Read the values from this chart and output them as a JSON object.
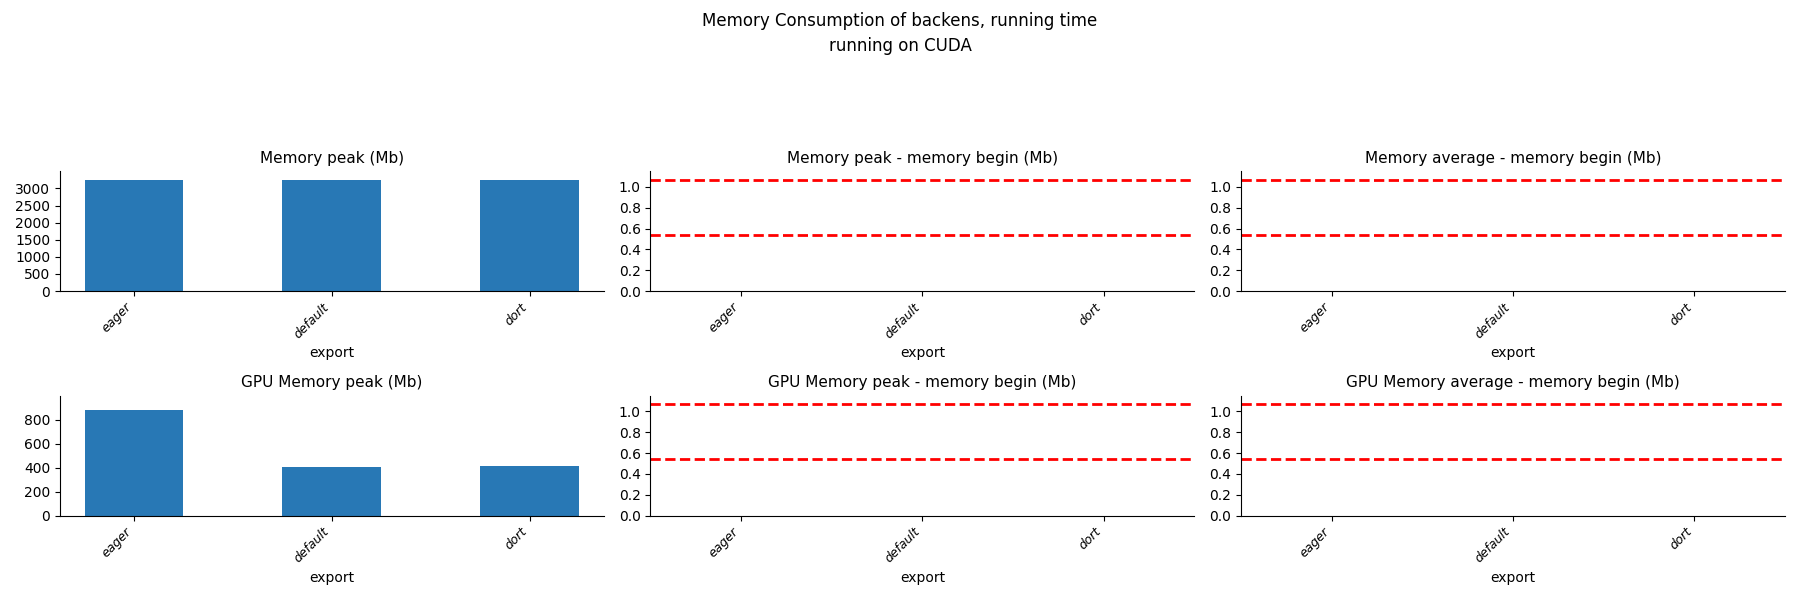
{
  "suptitle": "Memory Consumption of backens, running time\nrunning on CUDA",
  "categories": [
    "eager",
    "default",
    "dort"
  ],
  "xlabel": "export",
  "bar_color": "#2878b5",
  "subplots": [
    {
      "title": "Memory peak (Mb)",
      "type": "bar",
      "values": [
        3250,
        3250,
        3250
      ],
      "ylim": [
        0,
        3500
      ],
      "yticks": [
        0,
        500,
        1000,
        1500,
        2000,
        2500,
        3000
      ]
    },
    {
      "title": "Memory peak - memory begin (Mb)",
      "type": "hlines",
      "hline_values": [
        1.07,
        0.54
      ],
      "ylim": [
        0.0,
        1.15
      ],
      "yticks": [
        0.0,
        0.2,
        0.4,
        0.6,
        0.8,
        1.0
      ]
    },
    {
      "title": "Memory average - memory begin (Mb)",
      "type": "hlines",
      "hline_values": [
        1.07,
        0.54
      ],
      "ylim": [
        0.0,
        1.15
      ],
      "yticks": [
        0.0,
        0.2,
        0.4,
        0.6,
        0.8,
        1.0
      ]
    },
    {
      "title": "GPU Memory peak (Mb)",
      "type": "bar",
      "values": [
        880,
        405,
        412
      ],
      "ylim": [
        0,
        1000
      ],
      "yticks": [
        0,
        200,
        400,
        600,
        800
      ]
    },
    {
      "title": "GPU Memory peak - memory begin (Mb)",
      "type": "hlines",
      "hline_values": [
        1.07,
        0.54
      ],
      "ylim": [
        0.0,
        1.15
      ],
      "yticks": [
        0.0,
        0.2,
        0.4,
        0.6,
        0.8,
        1.0
      ]
    },
    {
      "title": "GPU Memory average - memory begin (Mb)",
      "type": "hlines",
      "hline_values": [
        1.07,
        0.54
      ],
      "ylim": [
        0.0,
        1.15
      ],
      "yticks": [
        0.0,
        0.2,
        0.4,
        0.6,
        0.8,
        1.0
      ]
    }
  ]
}
